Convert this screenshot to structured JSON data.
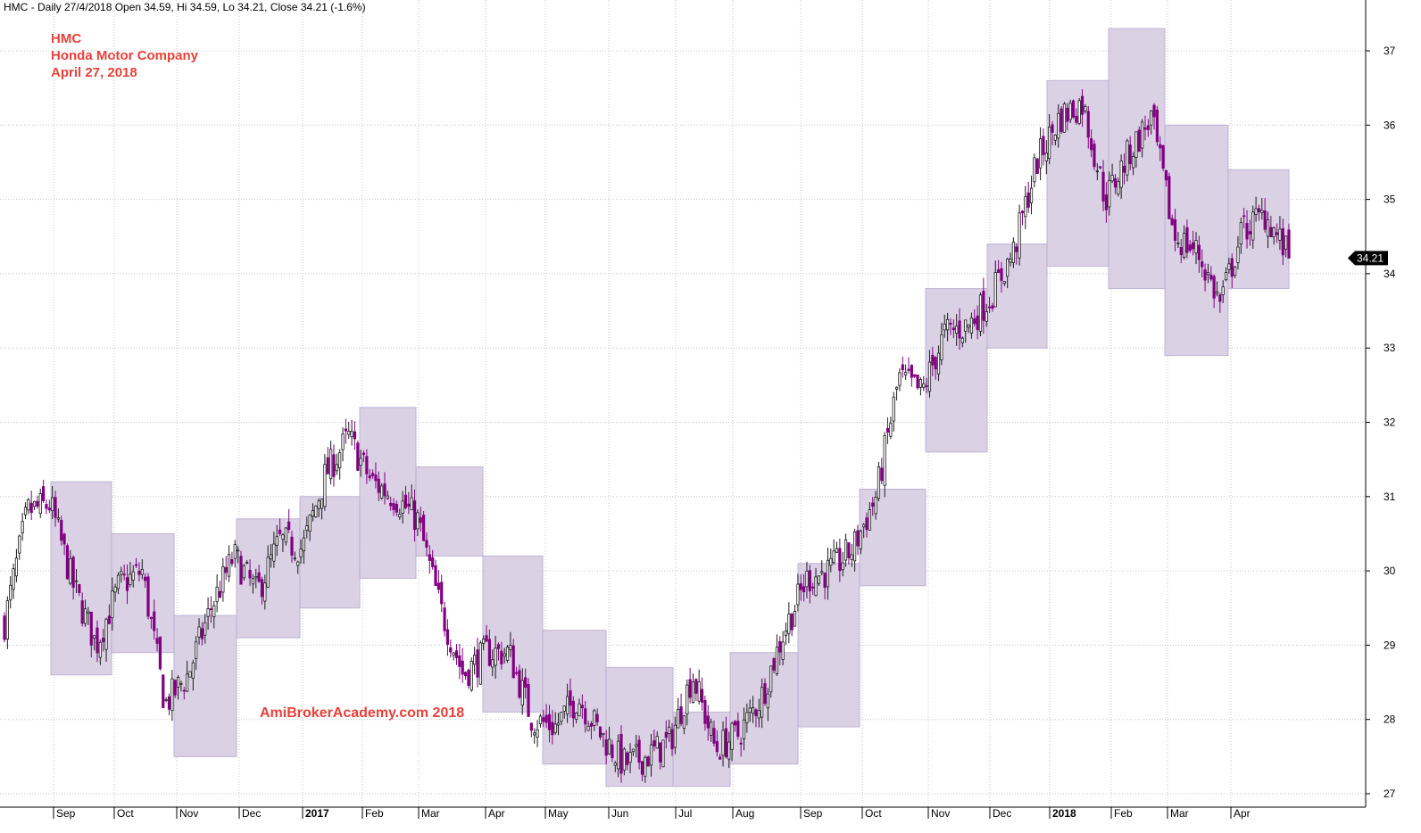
{
  "header": "HMC - Daily 27/4/2018 Open 34.59, Hi 34.59, Lo 34.21, Close 34.21 (-1.6%)",
  "title": {
    "line1": "HMC",
    "line2": "Honda Motor Company",
    "line3": "April 27, 2018"
  },
  "watermark": "AmiBrokerAcademy.com  2018",
  "last_price_label": "34.21",
  "colors": {
    "up": "#1a1a1a",
    "down": "#800080",
    "box": "#d6cde3",
    "box_border": "#b9acd0",
    "grid": "#c8c8c8",
    "text_red": "#e8403a"
  },
  "chart_data": {
    "type": "candlestick",
    "ylim": [
      26.9,
      37.8
    ],
    "y_ticks": [
      27,
      28,
      29,
      30,
      31,
      32,
      33,
      34,
      35,
      36,
      37
    ],
    "x_labels": [
      "Sep",
      "Oct",
      "Nov",
      "Dec",
      "2017",
      "Feb",
      "Mar",
      "Apr",
      "May",
      "Jun",
      "Jul",
      "Aug",
      "Sep",
      "Oct",
      "Nov",
      "Dec",
      "2018",
      "Feb",
      "Mar",
      "Apr"
    ],
    "x_label_bold": [
      false,
      false,
      false,
      false,
      true,
      false,
      false,
      false,
      false,
      false,
      false,
      false,
      false,
      false,
      false,
      false,
      true,
      false,
      false,
      false
    ],
    "monthly_ranges": [
      {
        "month": "Sep 2016",
        "high": 31.2,
        "low": 28.6
      },
      {
        "month": "Oct 2016",
        "high": 30.5,
        "low": 28.9
      },
      {
        "month": "Nov 2016",
        "high": 29.4,
        "low": 27.5
      },
      {
        "month": "Dec 2016",
        "high": 30.7,
        "low": 29.1
      },
      {
        "month": "Jan 2017",
        "high": 31.0,
        "low": 29.5
      },
      {
        "month": "Feb 2017",
        "high": 32.2,
        "low": 29.9
      },
      {
        "month": "Mar 2017",
        "high": 31.4,
        "low": 30.2
      },
      {
        "month": "Apr 2017",
        "high": 30.2,
        "low": 28.1
      },
      {
        "month": "May 2017",
        "high": 29.2,
        "low": 27.4
      },
      {
        "month": "Jun 2017",
        "high": 28.7,
        "low": 27.1
      },
      {
        "month": "Jul 2017",
        "high": 28.1,
        "low": 27.1
      },
      {
        "month": "Aug 2017",
        "high": 28.9,
        "low": 27.4
      },
      {
        "month": "Sep 2017",
        "high": 30.1,
        "low": 27.9
      },
      {
        "month": "Oct 2017",
        "high": 31.1,
        "low": 29.8
      },
      {
        "month": "Nov 2017",
        "high": 33.8,
        "low": 31.6
      },
      {
        "month": "Dec 2017",
        "high": 34.4,
        "low": 33.0
      },
      {
        "month": "Jan 2018",
        "high": 36.6,
        "low": 34.1
      },
      {
        "month": "Feb 2018",
        "high": 37.3,
        "low": 33.8
      },
      {
        "month": "Mar 2018",
        "high": 36.0,
        "low": 32.9
      },
      {
        "month": "Apr 2018",
        "high": 35.4,
        "low": 33.8
      }
    ],
    "daily_close_anchors": [
      {
        "x": "Aug 2016",
        "y": 29.3
      },
      {
        "x": "late Aug 2016",
        "y": 30.8
      },
      {
        "x": "Sep 2016",
        "y": 30.9
      },
      {
        "x": "mid Sep 2016",
        "y": 29.8
      },
      {
        "x": "late Sep 2016",
        "y": 29.0
      },
      {
        "x": "Oct 2016",
        "y": 29.8
      },
      {
        "x": "late Oct 2016",
        "y": 30.0
      },
      {
        "x": "Nov 2016",
        "y": 28.2
      },
      {
        "x": "late Nov 2016",
        "y": 28.6
      },
      {
        "x": "Dec 2016",
        "y": 29.5
      },
      {
        "x": "mid Dec 2016",
        "y": 30.2
      },
      {
        "x": "late Dec 2016",
        "y": 29.7
      },
      {
        "x": "Jan 2017",
        "y": 30.4
      },
      {
        "x": "late Jan 2017",
        "y": 30.3
      },
      {
        "x": "Feb 2017",
        "y": 31.3
      },
      {
        "x": "mid Feb 2017",
        "y": 31.8
      },
      {
        "x": "late Feb 2017",
        "y": 31.2
      },
      {
        "x": "Mar 2017",
        "y": 31.0
      },
      {
        "x": "late Mar 2017",
        "y": 30.7
      },
      {
        "x": "Apr 2017",
        "y": 29.5
      },
      {
        "x": "mid Apr 2017",
        "y": 28.6
      },
      {
        "x": "late Apr 2017",
        "y": 28.9
      },
      {
        "x": "May 2017",
        "y": 28.9
      },
      {
        "x": "mid May 2017",
        "y": 28.0
      },
      {
        "x": "late May 2017",
        "y": 27.9
      },
      {
        "x": "Jun 2017",
        "y": 28.3
      },
      {
        "x": "mid Jun 2017",
        "y": 27.8
      },
      {
        "x": "late Jun 2017",
        "y": 27.4
      },
      {
        "x": "Jul 2017",
        "y": 27.5
      },
      {
        "x": "late Jul 2017",
        "y": 27.7
      },
      {
        "x": "Aug 2017",
        "y": 28.6
      },
      {
        "x": "mid Aug 2017",
        "y": 27.6
      },
      {
        "x": "late Aug 2017",
        "y": 27.8
      },
      {
        "x": "Sep 2017",
        "y": 28.3
      },
      {
        "x": "mid Sep 2017",
        "y": 29.2
      },
      {
        "x": "late Sep 2017",
        "y": 29.9
      },
      {
        "x": "Oct 2017",
        "y": 30.0
      },
      {
        "x": "mid Oct 2017",
        "y": 30.3
      },
      {
        "x": "late Oct 2017",
        "y": 31.0
      },
      {
        "x": "Nov 2017",
        "y": 32.6
      },
      {
        "x": "mid Nov 2017",
        "y": 32.4
      },
      {
        "x": "late Nov 2017",
        "y": 33.2
      },
      {
        "x": "Dec 2017",
        "y": 33.3
      },
      {
        "x": "mid Dec 2017",
        "y": 33.7
      },
      {
        "x": "late Dec 2017",
        "y": 34.3
      },
      {
        "x": "Jan 2018",
        "y": 35.5
      },
      {
        "x": "mid Jan 2018",
        "y": 36.1
      },
      {
        "x": "late Jan 2018",
        "y": 36.3
      },
      {
        "x": "Feb 2018",
        "y": 35.0
      },
      {
        "x": "mid Feb 2018",
        "y": 35.6
      },
      {
        "x": "late Feb 2018",
        "y": 36.1
      },
      {
        "x": "Mar 2018",
        "y": 34.5
      },
      {
        "x": "mid Mar 2018",
        "y": 34.3
      },
      {
        "x": "late Mar 2018",
        "y": 33.6
      },
      {
        "x": "Apr 2018",
        "y": 34.6
      },
      {
        "x": "mid Apr 2018",
        "y": 34.8
      },
      {
        "x": "Apr 27, 2018",
        "y": 34.21
      }
    ]
  }
}
